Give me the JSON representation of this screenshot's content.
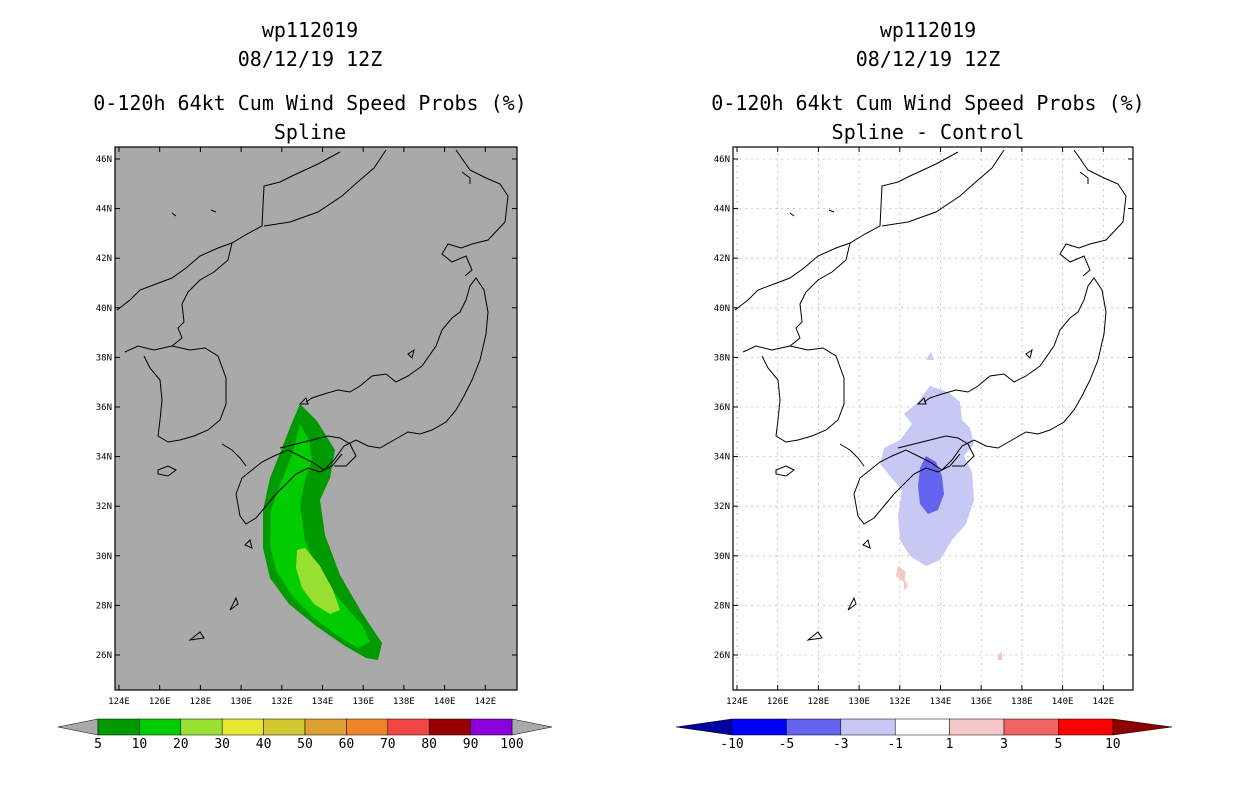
{
  "left_panel": {
    "storm_id": "wp112019",
    "datetime": "08/12/19 12Z",
    "title": "0-120h 64kt Cum Wind Speed Probs (%)",
    "subtitle": "Spline",
    "background_color": "#a9a9a9"
  },
  "right_panel": {
    "storm_id": "wp112019",
    "datetime": "08/12/19 12Z",
    "title": "0-120h 64kt Cum Wind Speed Probs (%)",
    "subtitle": "Spline - Control",
    "background_color": "#ffffff"
  },
  "axes": {
    "lon_labels": [
      "124E",
      "126E",
      "128E",
      "130E",
      "132E",
      "134E",
      "136E",
      "138E",
      "140E",
      "142E"
    ],
    "lat_labels": [
      "46N",
      "44N",
      "42N",
      "40N",
      "38N",
      "36N",
      "34N",
      "32N",
      "30N",
      "28N",
      "26N"
    ]
  },
  "left_colorbar": {
    "labels": [
      "5",
      "10",
      "20",
      "30",
      "40",
      "50",
      "60",
      "70",
      "80",
      "90",
      "100"
    ],
    "colors": [
      "#009900",
      "#00cc00",
      "#99e033",
      "#e8e832",
      "#d4c832",
      "#dea032",
      "#f08228",
      "#f04646",
      "#960000",
      "#8c00dc"
    ]
  },
  "right_colorbar": {
    "labels": [
      "-10",
      "-5",
      "-3",
      "-1",
      "1",
      "3",
      "5",
      "10"
    ],
    "colors": [
      "#0000ff",
      "#6464f0",
      "#c8c8f5",
      "#ffffff",
      "#f5c8c8",
      "#f06464",
      "#ff0000"
    ],
    "end_low": "#0000a0",
    "end_high": "#8c0000"
  },
  "chart_data": [
    {
      "type": "heatmap",
      "title": "0-120h 64kt Cum Wind Speed Probs (%) - Spline",
      "x_range_lon": [
        123.7,
        143.3
      ],
      "y_range_lat": [
        24.7,
        46.3
      ],
      "units": "%",
      "levels": [
        5,
        10,
        20,
        30
      ],
      "region": "southern Japan / western Pacific, swath from ~26N 136E to ~36N 133E"
    },
    {
      "type": "heatmap",
      "title": "0-120h 64kt Cum Wind Speed Probs (%) - Spline - Control",
      "x_range_lon": [
        123.7,
        143.3
      ],
      "y_range_lat": [
        24.7,
        46.3
      ],
      "units": "%",
      "levels": [
        -5,
        -3,
        1
      ],
      "region": "negative differences centered near 33N 133.5E"
    }
  ]
}
